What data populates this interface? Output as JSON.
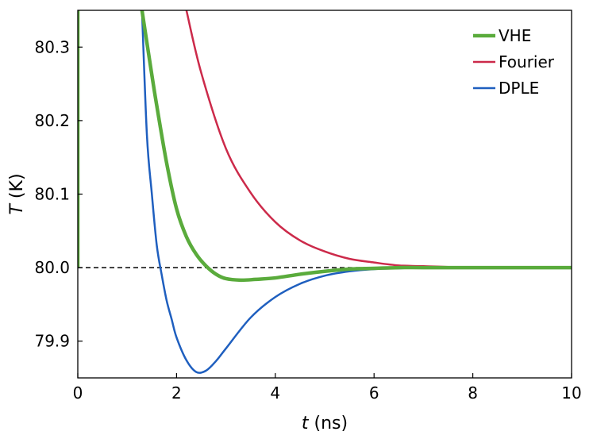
{
  "chart_data": {
    "type": "line",
    "xlabel_var": "t",
    "xlabel_unit": "(ns)",
    "ylabel_var": "T",
    "ylabel_unit": "(K)",
    "xlim": [
      0,
      10
    ],
    "ylim": [
      79.85,
      80.35
    ],
    "xticks": [
      0,
      2,
      4,
      6,
      8,
      10
    ],
    "yticks": [
      79.9,
      80.0,
      80.1,
      80.2,
      80.3
    ],
    "xtick_labels": [
      "0",
      "2",
      "4",
      "6",
      "8",
      "10"
    ],
    "ytick_labels": [
      "79.9",
      "80.0",
      "80.1",
      "80.2",
      "80.3"
    ],
    "reference_line": {
      "y": 80.0,
      "style": "dashed",
      "color": "#000000"
    },
    "legend_position": "top-right",
    "grid": false,
    "series": [
      {
        "name": "VHE",
        "color": "#5aab3c",
        "x": [
          0.0,
          1.3,
          1.5,
          1.6,
          1.8,
          2.0,
          2.2,
          2.4,
          2.6,
          2.8,
          3.0,
          3.3,
          3.6,
          4.0,
          4.5,
          5.0,
          5.5,
          6.0,
          6.5,
          7.0,
          8.0,
          9.0,
          10.0
        ],
        "values": [
          80.35,
          80.35,
          80.262,
          80.22,
          80.142,
          80.08,
          80.042,
          80.018,
          80.002,
          79.991,
          79.985,
          79.983,
          79.984,
          79.986,
          79.991,
          79.995,
          79.998,
          79.999,
          80.0,
          80.0,
          80.0,
          80.0,
          80.0
        ]
      },
      {
        "name": "Fourier",
        "color": "#cc2a4a",
        "x": [
          2.2,
          2.5,
          3.0,
          3.5,
          4.0,
          4.5,
          5.0,
          5.5,
          6.0,
          6.5,
          7.0,
          8.0,
          9.0,
          10.0
        ],
        "values": [
          80.35,
          80.265,
          80.162,
          80.102,
          80.062,
          80.037,
          80.022,
          80.012,
          80.007,
          80.003,
          80.002,
          80.0,
          80.0,
          80.0
        ]
      },
      {
        "name": "DPLE",
        "color": "#1f5fbf",
        "x": [
          1.3,
          1.4,
          1.5,
          1.6,
          1.7,
          1.8,
          1.9,
          2.0,
          2.2,
          2.4,
          2.6,
          2.8,
          3.0,
          3.5,
          4.0,
          4.5,
          5.0,
          5.5,
          6.0,
          6.5,
          7.0,
          8.0,
          9.0,
          10.0
        ],
        "values": [
          80.35,
          80.18,
          80.1,
          80.03,
          79.99,
          79.955,
          79.93,
          79.905,
          79.874,
          79.858,
          79.86,
          79.873,
          79.89,
          79.932,
          79.96,
          79.978,
          79.989,
          79.995,
          79.998,
          79.999,
          80.0,
          80.0,
          80.0,
          80.0
        ]
      }
    ],
    "vhe_initial_spike": {
      "x": 0.0,
      "from": 80.0,
      "to": 80.35
    }
  }
}
